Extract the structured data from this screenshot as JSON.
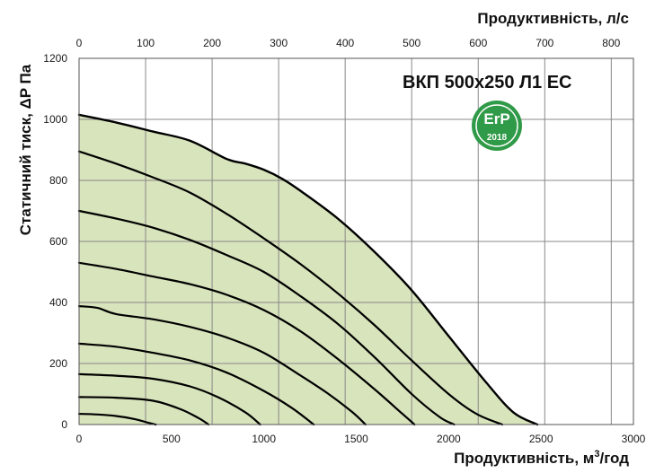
{
  "chart_data": {
    "type": "line",
    "title": "ВКП 500x250 Л1 ЕС",
    "badge": {
      "main": "ErP",
      "year": "2018",
      "color": "#2f9a47"
    },
    "xlabel": "Продуктивність, м³/год",
    "xlabel_main": "Продуктивність, м",
    "xlabel_sup": "3",
    "xlabel_tail": "/год",
    "x2label": "Продуктивність, л/с",
    "ylabel": "Статичний тиск, ΔP Па",
    "xlim": [
      0,
      3000
    ],
    "ylim": [
      0,
      1200
    ],
    "x2lim": [
      0,
      833.33
    ],
    "xticks": [
      0,
      500,
      1000,
      1500,
      2000,
      2500,
      3000
    ],
    "yticks": [
      0,
      200,
      400,
      600,
      800,
      1000,
      1200
    ],
    "x2ticks": [
      0,
      100,
      200,
      300,
      400,
      500,
      600,
      700,
      800
    ],
    "grid": true,
    "fill_color": "#d8e4bc",
    "line_color": "#000000",
    "series": [
      {
        "x": [
          0,
          200,
          400,
          600,
          800,
          900,
          1000,
          1100,
          1200,
          1400,
          1600,
          1800,
          2000,
          2200,
          2350,
          2480
        ],
        "y": [
          1015,
          990,
          960,
          930,
          870,
          855,
          835,
          805,
          765,
          675,
          565,
          440,
          290,
          140,
          40,
          0
        ]
      },
      {
        "x": [
          0,
          200,
          400,
          600,
          800,
          1000,
          1200,
          1400,
          1600,
          1800,
          2000,
          2150,
          2290
        ],
        "y": [
          895,
          855,
          810,
          760,
          690,
          610,
          525,
          430,
          325,
          210,
          100,
          35,
          0
        ]
      },
      {
        "x": [
          0,
          200,
          400,
          600,
          800,
          1000,
          1200,
          1400,
          1600,
          1800,
          1950,
          2030
        ],
        "y": [
          700,
          675,
          645,
          605,
          555,
          500,
          420,
          330,
          220,
          100,
          25,
          0
        ]
      },
      {
        "x": [
          0,
          200,
          400,
          600,
          800,
          1000,
          1200,
          1400,
          1600,
          1750,
          1815
        ],
        "y": [
          530,
          510,
          485,
          460,
          425,
          375,
          305,
          215,
          115,
          35,
          0
        ]
      },
      {
        "x": [
          0,
          100,
          200,
          400,
          600,
          800,
          1000,
          1200,
          1350,
          1480,
          1550
        ],
        "y": [
          388,
          382,
          362,
          345,
          320,
          285,
          235,
          160,
          100,
          40,
          0
        ]
      },
      {
        "x": [
          0,
          200,
          400,
          600,
          800,
          1000,
          1150,
          1270
        ],
        "y": [
          265,
          255,
          235,
          210,
          170,
          110,
          55,
          0
        ]
      },
      {
        "x": [
          0,
          200,
          400,
          600,
          750,
          900,
          980
        ],
        "y": [
          165,
          160,
          150,
          125,
          90,
          40,
          0
        ]
      },
      {
        "x": [
          0,
          200,
          400,
          550,
          650,
          700
        ],
        "y": [
          90,
          88,
          78,
          50,
          20,
          0
        ]
      },
      {
        "x": [
          0,
          100,
          200,
          300,
          380,
          415
        ],
        "y": [
          35,
          33,
          28,
          18,
          5,
          0
        ]
      }
    ]
  }
}
